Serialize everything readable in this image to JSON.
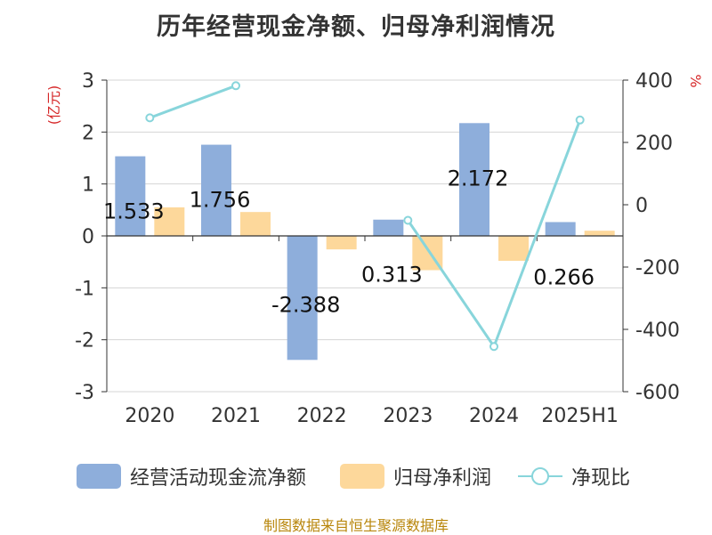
{
  "chart_data": {
    "type": "bar",
    "title": "历年经营现金净额、归母净利润情况",
    "categories": [
      "2020",
      "2021",
      "2022",
      "2023",
      "2024",
      "2025H1"
    ],
    "series": [
      {
        "name": "经营活动现金流净额",
        "type": "bar",
        "axis": "left",
        "color": "#8eaedb",
        "values": [
          1.533,
          1.756,
          -2.388,
          0.313,
          2.172,
          0.266
        ],
        "labels": [
          "1.533",
          "1.756",
          "-2.388",
          "0.313",
          "2.172",
          "0.266"
        ]
      },
      {
        "name": "归母净利润",
        "type": "bar",
        "axis": "left",
        "color": "#fdd89b",
        "values": [
          0.55,
          0.46,
          -0.26,
          -0.66,
          -0.48,
          0.1
        ]
      },
      {
        "name": "净现比",
        "type": "line",
        "axis": "right",
        "color": "#88d5db",
        "values": [
          279,
          382,
          null,
          -50,
          -455,
          272
        ]
      }
    ],
    "y_left": {
      "label": "(亿元)",
      "min": -3,
      "max": 3,
      "ticks": [
        3,
        2,
        1,
        0,
        -1,
        -2,
        -3
      ]
    },
    "y_right": {
      "label": "%",
      "min": -600,
      "max": 400,
      "ticks": [
        400,
        200,
        0,
        -200,
        -400,
        -600
      ]
    },
    "grid": true,
    "legend_position": "bottom"
  },
  "source_note": "制图数据来自恒生聚源数据库"
}
